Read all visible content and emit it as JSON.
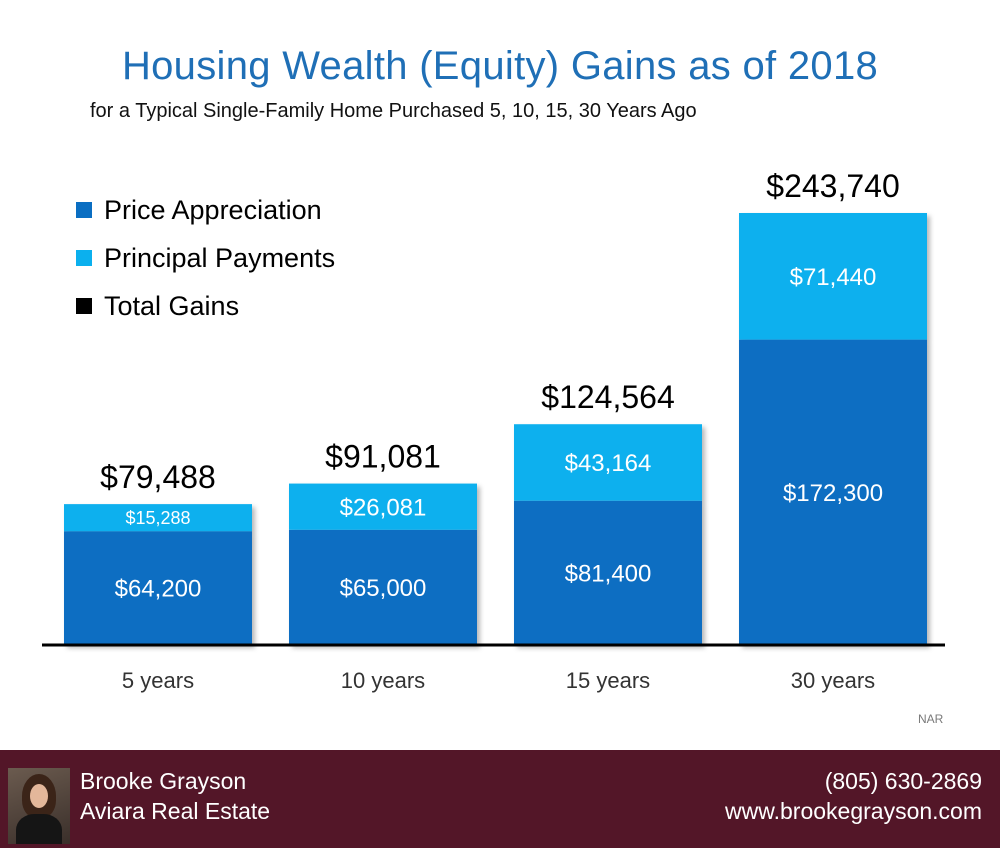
{
  "title": "Housing Wealth (Equity) Gains as of 2018",
  "subtitle": "for a Typical Single-Family Home Purchased 5, 10, 15, 30 Years Ago",
  "legend": [
    {
      "label": "Price Appreciation",
      "color": "#0a6ec2"
    },
    {
      "label": "Principal Payments",
      "color": "#0bb0ee"
    },
    {
      "label": "Total Gains",
      "color": "#000000"
    }
  ],
  "source": "NAR",
  "footer": {
    "name": "Brooke Grayson",
    "company": "Aviara Real Estate",
    "phone": "(805) 630-2869",
    "website": "www.brookegrayson.com",
    "background": "#531628"
  },
  "chart_data": {
    "type": "bar",
    "stacked": true,
    "categories": [
      "5 years",
      "10 years",
      "15 years",
      "30 years"
    ],
    "series": [
      {
        "name": "Price Appreciation",
        "color": "#0a6ec2",
        "values": [
          64200,
          65000,
          81400,
          172300
        ],
        "labels": [
          "$64,200",
          "$65,000",
          "$81,400",
          "$172,300"
        ]
      },
      {
        "name": "Principal Payments",
        "color": "#0bb0ee",
        "values": [
          15288,
          26081,
          43164,
          71440
        ],
        "labels": [
          "$15,288",
          "$26,081",
          "$43,164",
          "$71,440"
        ]
      }
    ],
    "totals": [
      79488,
      91081,
      124564,
      243740
    ],
    "total_labels": [
      "$79,488",
      "$91,081",
      "$124,564",
      "$243,740"
    ],
    "ylim": [
      0,
      243740
    ],
    "grid": false
  }
}
